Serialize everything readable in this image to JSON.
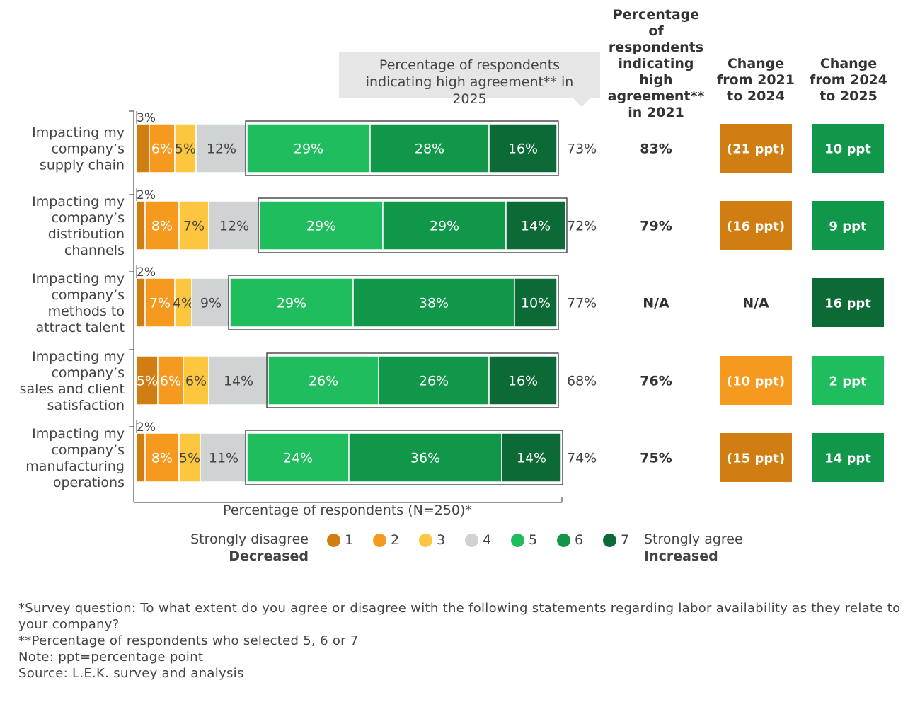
{
  "header": {
    "col2021": "Percentage of respondents indicating high agreement** in 2021",
    "change1": "Change from 2021 to 2024",
    "change2": "Change from 2024 to 2025",
    "callout": "Percentage of respondents indicating high agreement** in 2025"
  },
  "chart_data": {
    "type": "bar",
    "orientation": "horizontal-stacked",
    "xlabel": "Percentage of respondents (N=250)*",
    "categories": [
      "Impacting my company's supply chain",
      "Impacting my company's distribution channels",
      "Impacting my company's methods to attract talent",
      "Impacting my company's sales and client satisfaction",
      "Impacting my company's manufacturing operations"
    ],
    "category_lines": [
      [
        "Impacting my",
        "company's",
        "supply chain"
      ],
      [
        "Impacting my",
        "company's",
        "distribution",
        "channels"
      ],
      [
        "Impacting my",
        "company's",
        "methods to",
        "attract talent"
      ],
      [
        "Impacting my",
        "company's",
        "sales and client",
        "satisfaction"
      ],
      [
        "Impacting my",
        "company's",
        "manufacturing",
        "operations"
      ]
    ],
    "series": [
      {
        "name": "1",
        "color": "#d07e12",
        "values": [
          3,
          2,
          2,
          5,
          2
        ]
      },
      {
        "name": "2",
        "color": "#f59a1e",
        "values": [
          6,
          8,
          7,
          6,
          8
        ]
      },
      {
        "name": "3",
        "color": "#fcc63e",
        "values": [
          5,
          7,
          4,
          6,
          5
        ]
      },
      {
        "name": "4",
        "color": "#cfd3d3",
        "values": [
          12,
          12,
          9,
          14,
          11
        ]
      },
      {
        "name": "5",
        "color": "#1fbd5e",
        "values": [
          29,
          29,
          29,
          26,
          24
        ]
      },
      {
        "name": "6",
        "color": "#10974a",
        "values": [
          28,
          29,
          38,
          26,
          36
        ]
      },
      {
        "name": "7",
        "color": "#0b6a36",
        "values": [
          16,
          14,
          10,
          16,
          14
        ]
      }
    ],
    "high_agreement_2025": [
      "73%",
      "72%",
      "77%",
      "68%",
      "74%"
    ],
    "high_agreement_2021": [
      "83%",
      "79%",
      "N/A",
      "76%",
      "75%"
    ],
    "change_2021_2024": [
      {
        "label": "(21 ppt)",
        "color": "#d07e12"
      },
      {
        "label": "(16 ppt)",
        "color": "#d07e12"
      },
      {
        "label": "N/A",
        "color": null
      },
      {
        "label": "(10 ppt)",
        "color": "#f59a1e"
      },
      {
        "label": "(15 ppt)",
        "color": "#d07e12"
      }
    ],
    "change_2024_2025": [
      {
        "label": "10 ppt",
        "color": "#10974a"
      },
      {
        "label": "9 ppt",
        "color": "#10974a"
      },
      {
        "label": "16 ppt",
        "color": "#0b6a36"
      },
      {
        "label": "2 ppt",
        "color": "#1fbd5e"
      },
      {
        "label": "14 ppt",
        "color": "#10974a"
      }
    ],
    "legend": {
      "left_label": "Strongly disagree",
      "left_sub": "Decreased",
      "right_label": "Strongly agree",
      "right_sub": "Increased",
      "items": [
        "1",
        "2",
        "3",
        "4",
        "5",
        "6",
        "7"
      ]
    }
  },
  "footnotes": [
    "*Survey question: To what extent do you agree or disagree with the following statements regarding labor availability as they relate to your company?",
    "**Percentage of respondents who selected 5, 6 or 7",
    "Note: ppt=percentage point",
    "Source: L.E.K. survey and analysis"
  ]
}
